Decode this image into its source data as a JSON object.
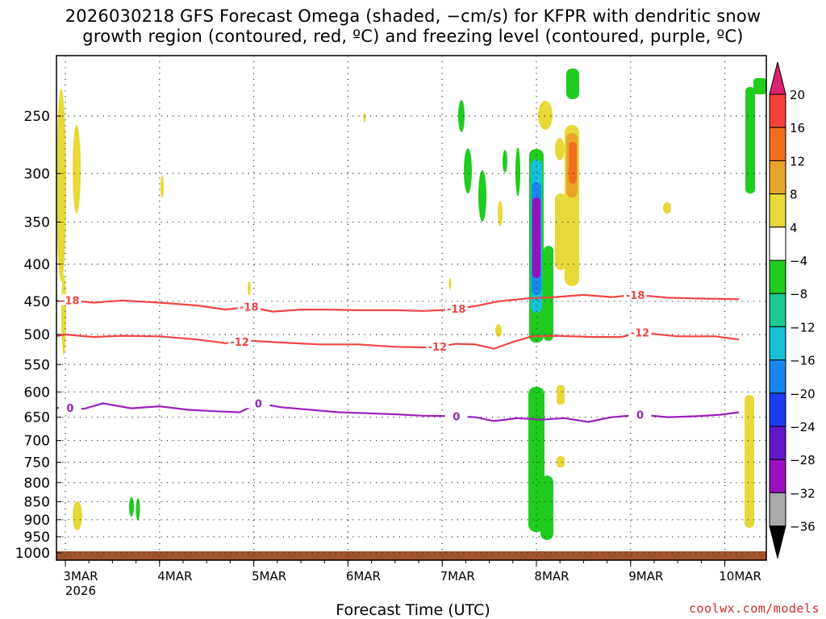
{
  "title_line1": "2026030218 GFS Forecast Omega (shaded, −cm/s) for KFPR with dendritic snow",
  "title_line2": "growth region (contoured, red, ºC) and freezing level (contoured, purple, ºC)",
  "credit": "coolwx.com/models",
  "chart_data": {
    "type": "heatmap",
    "xlabel": "Forecast Time (UTC)",
    "ylabel": "",
    "x_ticks": [
      "3MAR",
      "4MAR",
      "5MAR",
      "6MAR",
      "7MAR",
      "8MAR",
      "9MAR",
      "10MAR"
    ],
    "x_sub_label": "2026",
    "x_range_days": [
      2.75,
      10.15
    ],
    "y_ticks": [
      250,
      300,
      350,
      400,
      450,
      500,
      550,
      600,
      650,
      700,
      750,
      800,
      850,
      900,
      950,
      1000
    ],
    "y_range_hpa": [
      1020,
      205
    ],
    "y_scale": "log-pressure",
    "grid": true,
    "colorbar": {
      "levels": [
        "20",
        "16",
        "12",
        "8",
        "4",
        "−4",
        "−8",
        "−12",
        "−16",
        "−20",
        "−24",
        "−28",
        "−32",
        "−36"
      ],
      "colors": [
        "#dd2070",
        "#f2403a",
        "#f06f1e",
        "#e8a42a",
        "#e8d838",
        "#ffffff",
        "#1fcc1f",
        "#18c890",
        "#16c0d8",
        "#1888ee",
        "#1a3cee",
        "#6218c8",
        "#9a10c0",
        "#aaaaaa",
        "#000000"
      ]
    },
    "contours": [
      {
        "name": "-18",
        "color": "#f04545",
        "labels": [
          {
            "day": 3.05,
            "value": "-18"
          },
          {
            "day": 4.95,
            "value": "-18"
          },
          {
            "day": 7.15,
            "value": "-18"
          },
          {
            "day": 9.05,
            "value": "-18"
          }
        ],
        "points": [
          [
            2.75,
            452
          ],
          [
            3.0,
            448
          ],
          [
            3.3,
            452
          ],
          [
            3.6,
            449
          ],
          [
            4.0,
            452
          ],
          [
            4.4,
            456
          ],
          [
            4.7,
            462
          ],
          [
            4.95,
            458
          ],
          [
            5.2,
            465
          ],
          [
            5.5,
            462
          ],
          [
            5.8,
            462
          ],
          [
            6.1,
            463
          ],
          [
            6.5,
            463
          ],
          [
            6.8,
            464
          ],
          [
            7.1,
            462
          ],
          [
            7.35,
            457
          ],
          [
            7.6,
            450
          ],
          [
            7.9,
            446
          ],
          [
            8.2,
            444
          ],
          [
            8.5,
            441
          ],
          [
            8.8,
            444
          ],
          [
            9.05,
            441
          ],
          [
            9.4,
            445
          ],
          [
            9.7,
            446
          ],
          [
            10.15,
            447
          ]
        ]
      },
      {
        "name": "-12",
        "color": "#f04545",
        "labels": [
          {
            "day": 4.85,
            "value": "-12"
          },
          {
            "day": 6.95,
            "value": "-12"
          },
          {
            "day": 9.1,
            "value": "-12"
          }
        ],
        "points": [
          [
            2.75,
            507
          ],
          [
            3.0,
            500
          ],
          [
            3.3,
            504
          ],
          [
            3.6,
            502
          ],
          [
            4.0,
            503
          ],
          [
            4.4,
            508
          ],
          [
            4.7,
            514
          ],
          [
            4.95,
            510
          ],
          [
            5.3,
            513
          ],
          [
            5.7,
            516
          ],
          [
            6.1,
            516
          ],
          [
            6.5,
            520
          ],
          [
            6.9,
            521
          ],
          [
            7.15,
            515
          ],
          [
            7.35,
            516
          ],
          [
            7.55,
            523
          ],
          [
            7.75,
            512
          ],
          [
            7.95,
            503
          ],
          [
            8.2,
            502
          ],
          [
            8.6,
            504
          ],
          [
            8.9,
            504
          ],
          [
            9.1,
            497
          ],
          [
            9.5,
            503
          ],
          [
            9.9,
            503
          ],
          [
            10.15,
            508
          ]
        ]
      },
      {
        "name": "0",
        "color": "#9a20c0",
        "labels": [
          {
            "day": 3.05,
            "value": "0"
          },
          {
            "day": 5.05,
            "value": "0"
          },
          {
            "day": 7.15,
            "value": "0"
          },
          {
            "day": 9.1,
            "value": "0"
          }
        ],
        "points": [
          [
            2.75,
            638
          ],
          [
            2.95,
            630
          ],
          [
            3.2,
            633
          ],
          [
            3.4,
            622
          ],
          [
            3.7,
            632
          ],
          [
            4.0,
            628
          ],
          [
            4.3,
            635
          ],
          [
            4.6,
            638
          ],
          [
            4.85,
            640
          ],
          [
            5.05,
            622
          ],
          [
            5.3,
            630
          ],
          [
            5.6,
            635
          ],
          [
            5.9,
            640
          ],
          [
            6.2,
            642
          ],
          [
            6.5,
            644
          ],
          [
            6.8,
            647
          ],
          [
            7.1,
            648
          ],
          [
            7.35,
            650
          ],
          [
            7.55,
            658
          ],
          [
            7.8,
            652
          ],
          [
            8.05,
            655
          ],
          [
            8.3,
            652
          ],
          [
            8.55,
            660
          ],
          [
            8.8,
            650
          ],
          [
            9.1,
            645
          ],
          [
            9.4,
            650
          ],
          [
            9.7,
            648
          ],
          [
            9.95,
            645
          ],
          [
            10.15,
            640
          ]
        ]
      }
    ]
  }
}
